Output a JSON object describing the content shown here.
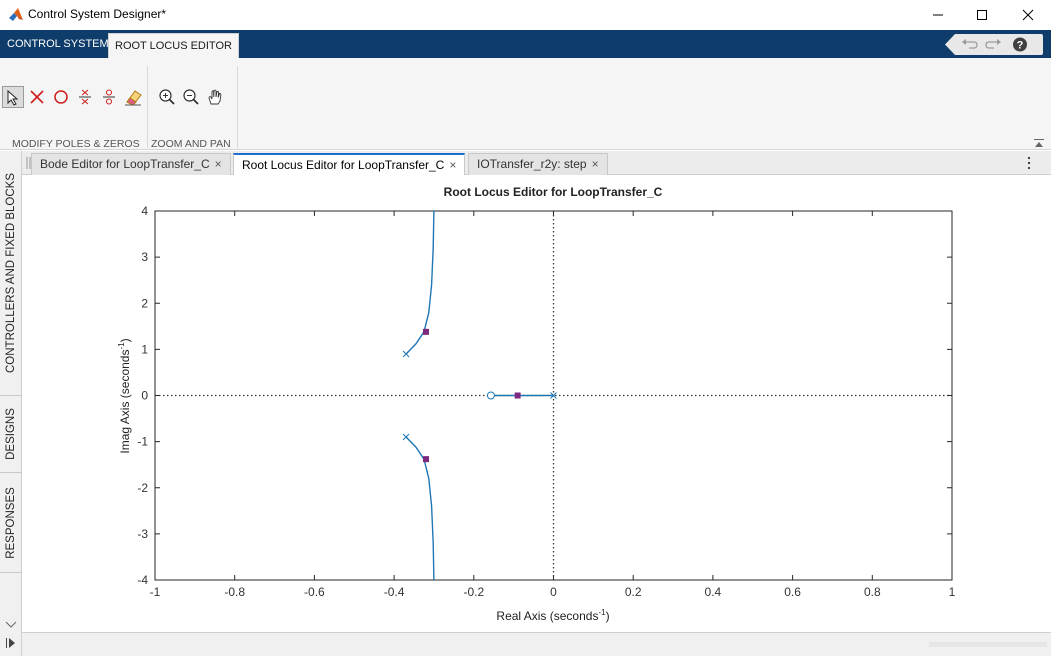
{
  "window": {
    "title": "Control System Designer*"
  },
  "ribbon": {
    "tabs": [
      {
        "label": "CONTROL SYSTEM"
      },
      {
        "label": "ROOT LOCUS EDITOR"
      }
    ]
  },
  "toolstrip": {
    "sections": [
      {
        "label": "MODIFY POLES & ZEROS"
      },
      {
        "label": "ZOOM AND PAN"
      }
    ],
    "tools": [
      "select-arrow-icon",
      "add-pole-icon",
      "add-zero-icon",
      "add-complex-pole-icon",
      "add-complex-zero-icon",
      "delete-pole-zero-icon",
      "zoom-in-icon",
      "zoom-out-icon",
      "pan-hand-icon"
    ]
  },
  "left_panel": {
    "tabs": [
      {
        "label": "CONTROLLERS AND FIXED BLOCKS"
      },
      {
        "label": "DESIGNS"
      },
      {
        "label": "RESPONSES"
      }
    ]
  },
  "document_tabs": [
    {
      "label": "Bode Editor for LoopTransfer_C",
      "close": "×"
    },
    {
      "label": "Root Locus Editor for LoopTransfer_C",
      "close": "×"
    },
    {
      "label": "IOTransfer_r2y: step",
      "close": "×"
    }
  ],
  "chart_data": {
    "type": "line",
    "title": "Root Locus Editor for LoopTransfer_C",
    "xlabel": "Real  Axis  (seconds",
    "ylabel": "Imag  Axis  (seconds",
    "unit_superscript": "-1",
    "xlim": [
      -1,
      1
    ],
    "ylim": [
      -4,
      4
    ],
    "xticks": [
      -1,
      -0.8,
      -0.6,
      -0.4,
      -0.2,
      0,
      0.2,
      0.4,
      0.6,
      0.8,
      1
    ],
    "yticks": [
      -4,
      -3,
      -2,
      -1,
      0,
      1,
      2,
      3,
      4
    ],
    "xtick_labels": [
      "-1",
      "-0.8",
      "-0.6",
      "-0.4",
      "-0.2",
      "0",
      "0.2",
      "0.4",
      "0.6",
      "0.8",
      "1"
    ],
    "ytick_labels": [
      "-4",
      "-3",
      "-2",
      "-1",
      "0",
      "1",
      "2",
      "3",
      "4"
    ],
    "series": [
      {
        "branch": "upper",
        "x": [
          -0.37,
          -0.345,
          -0.325,
          -0.313,
          -0.306,
          -0.302,
          -0.3
        ],
        "y": [
          0.9,
          1.12,
          1.38,
          1.8,
          2.4,
          3.2,
          4.0
        ]
      },
      {
        "branch": "lower",
        "x": [
          -0.37,
          -0.345,
          -0.325,
          -0.313,
          -0.306,
          -0.302,
          -0.3
        ],
        "y": [
          -0.9,
          -1.12,
          -1.38,
          -1.8,
          -2.4,
          -3.2,
          -4.0
        ]
      },
      {
        "branch": "real",
        "x": [
          -0.157,
          -0.09,
          0
        ],
        "y": [
          0,
          0,
          0
        ]
      }
    ],
    "poles": [
      {
        "x": -0.37,
        "y": 0.9
      },
      {
        "x": -0.37,
        "y": -0.9
      },
      {
        "x": 0,
        "y": 0
      }
    ],
    "zeros": [
      {
        "x": -0.157,
        "y": 0
      }
    ],
    "closed_loop_poles": [
      {
        "x": -0.32,
        "y": 1.38
      },
      {
        "x": -0.32,
        "y": -1.38
      },
      {
        "x": -0.09,
        "y": 0
      }
    ],
    "grid": false,
    "colors": {
      "locus": "#1f77b4",
      "closed_loop": "#7b2a7f",
      "axis_dotted": "#333333"
    }
  }
}
